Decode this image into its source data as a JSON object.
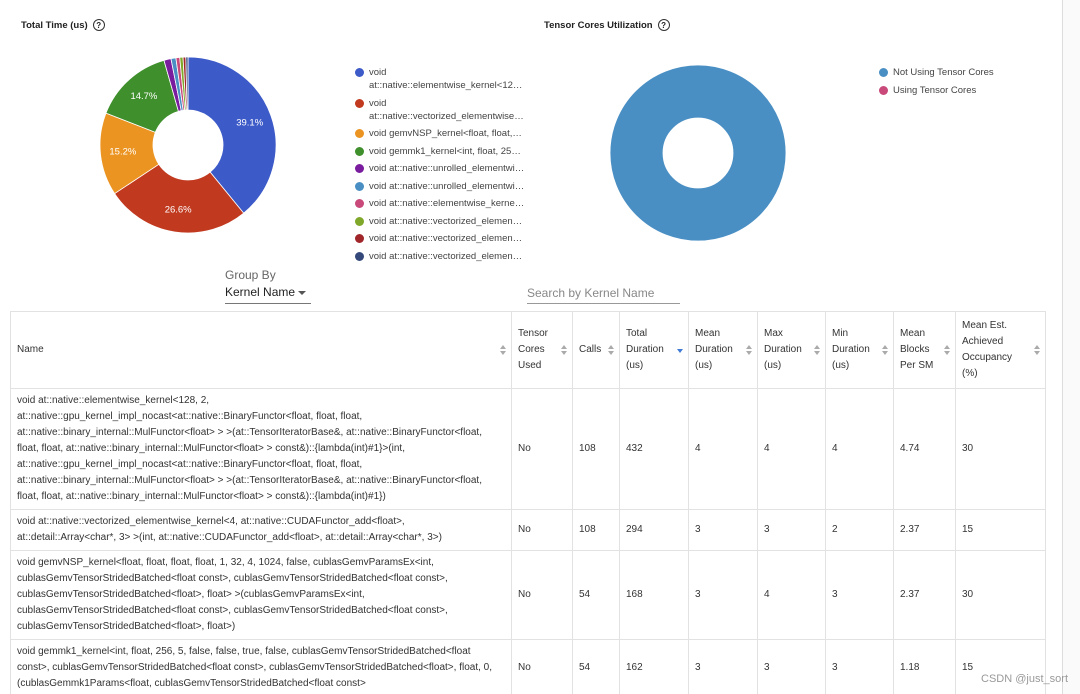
{
  "chart_data": [
    {
      "type": "pie",
      "title": "Total Time (us)",
      "categories": [
        "void at::native::elementwise_kernel<12…",
        "void at::native::vectorized_elementwise…",
        "void gemvNSP_kernel<float, float,…",
        "void gemmk1_kernel<int, float, 25…",
        "void at::native::unrolled_elementwi…",
        "void at::native::unrolled_elementwi…",
        "void at::native::elementwise_kerne…",
        "void at::native::vectorized_elemen…",
        "void at::native::vectorized_elemen…",
        "void at::native::vectorized_elemen…"
      ],
      "values": [
        39.1,
        26.6,
        15.2,
        14.7,
        1.3,
        0.9,
        0.7,
        0.6,
        0.5,
        0.4
      ],
      "value_labels": [
        "39.1%",
        "26.6%",
        "15.2%",
        "14.7%",
        null,
        null,
        null,
        null,
        null,
        null
      ],
      "colors": [
        "#3c5ac8",
        "#c1391f",
        "#eb9421",
        "#3f8f2c",
        "#7a1c9e",
        "#4a8fc4",
        "#c8497a",
        "#7fa82a",
        "#a0262a",
        "#34497a"
      ]
    },
    {
      "type": "pie",
      "title": "Tensor Cores Utilization",
      "categories": [
        "Not Using Tensor Cores",
        "Using Tensor Cores"
      ],
      "values": [
        100,
        0
      ],
      "value_labels": [
        null,
        null
      ],
      "colors": [
        "#4a8fc4",
        "#c8497a"
      ]
    }
  ],
  "controls": {
    "group_by_label": "Group By",
    "group_by_value": "Kernel Name",
    "search_placeholder": "Search by Kernel Name"
  },
  "table": {
    "columns": [
      "Name",
      "Tensor Cores Used",
      "Calls",
      "Total Duration (us)",
      "Mean Duration (us)",
      "Max Duration (us)",
      "Min Duration (us)",
      "Mean Blocks Per SM",
      "Mean Est. Achieved Occupancy (%)"
    ],
    "rows": [
      [
        "void at::native::elementwise_kernel<128, 2, at::native::gpu_kernel_impl_nocast<at::native::BinaryFunctor<float, float, float, at::native::binary_internal::MulFunctor<float> > >(at::TensorIteratorBase&, at::native::BinaryFunctor<float, float, float, at::native::binary_internal::MulFunctor<float> > const&)::{lambda(int)#1}>(int, at::native::gpu_kernel_impl_nocast<at::native::BinaryFunctor<float, float, float, at::native::binary_internal::MulFunctor<float> > >(at::TensorIteratorBase&, at::native::BinaryFunctor<float, float, float, at::native::binary_internal::MulFunctor<float> > const&)::{lambda(int)#1})",
        "No",
        108,
        432,
        4,
        4,
        4,
        4.74,
        30
      ],
      [
        "void at::native::vectorized_elementwise_kernel<4, at::native::CUDAFunctor_add<float>, at::detail::Array<char*, 3> >(int, at::native::CUDAFunctor_add<float>, at::detail::Array<char*, 3>)",
        "No",
        108,
        294,
        3,
        3,
        2,
        2.37,
        15
      ],
      [
        "void gemvNSP_kernel<float, float, float, float, 1, 32, 4, 1024, false, cublasGemvParamsEx<int, cublasGemvTensorStridedBatched<float const>, cublasGemvTensorStridedBatched<float const>, cublasGemvTensorStridedBatched<float>, float> >(cublasGemvParamsEx<int, cublasGemvTensorStridedBatched<float const>, cublasGemvTensorStridedBatched<float const>, cublasGemvTensorStridedBatched<float>, float>)",
        "No",
        54,
        168,
        3,
        4,
        3,
        2.37,
        30
      ],
      [
        "void gemmk1_kernel<int, float, 256, 5, false, false, true, false, cublasGemvTensorStridedBatched<float const>, cublasGemvTensorStridedBatched<float const>, cublasGemvTensorStridedBatched<float>, float, 0, (cublasGemmk1Params<float, cublasGemvTensorStridedBatched<float const>",
        "No",
        54,
        162,
        3,
        3,
        3,
        1.18,
        15
      ]
    ]
  },
  "watermark": "CSDN @just_sort"
}
